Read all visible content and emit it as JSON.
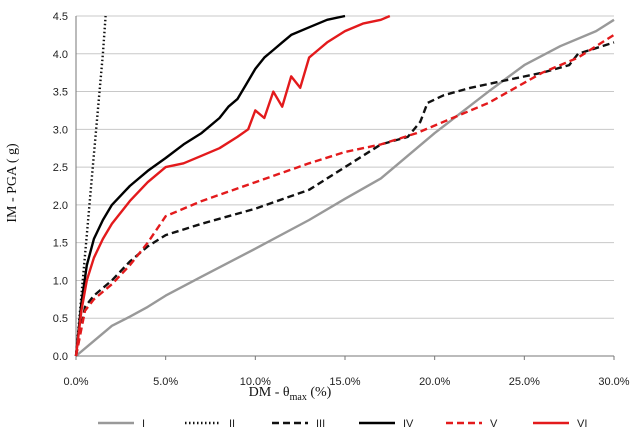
{
  "chart_data": {
    "type": "line",
    "xlabel": "DM - θmax (%)",
    "xlabel_main": "DM - θ",
    "xlabel_sub": "max",
    "xlabel_tail": " (%)",
    "ylabel": "IM - PGA ( g)",
    "xlim": [
      0,
      30
    ],
    "ylim": [
      0,
      4.5
    ],
    "x_ticks": [
      0,
      5,
      10,
      15,
      20,
      25,
      30
    ],
    "x_tick_labels": [
      "0.0%",
      "5.0%",
      "10.0%",
      "15.0%",
      "20.0%",
      "25.0%",
      "30.0%"
    ],
    "y_ticks": [
      0,
      0.5,
      1,
      1.5,
      2,
      2.5,
      3,
      3.5,
      4,
      4.5
    ],
    "y_tick_labels": [
      "0.0",
      "0.5",
      "1.0",
      "1.5",
      "2.0",
      "2.5",
      "3.0",
      "3.5",
      "4.0",
      "4.5"
    ],
    "grid": "horizontal",
    "legend_position": "bottom",
    "series": [
      {
        "name": "I",
        "color": "#999999",
        "style": "solid",
        "x": [
          0,
          1,
          2,
          3,
          4,
          5,
          7,
          10,
          13,
          15,
          17,
          20,
          23,
          25,
          27,
          29,
          30
        ],
        "y": [
          0,
          0.2,
          0.4,
          0.52,
          0.65,
          0.8,
          1.05,
          1.42,
          1.8,
          2.08,
          2.35,
          2.95,
          3.5,
          3.85,
          4.1,
          4.3,
          4.45
        ]
      },
      {
        "name": "II",
        "color": "#111111",
        "style": "dotted",
        "x": [
          0,
          0.3,
          0.6,
          0.9,
          1.2,
          1.5,
          1.65
        ],
        "y": [
          0,
          0.8,
          1.6,
          2.4,
          3.2,
          4.0,
          4.5
        ]
      },
      {
        "name": "III",
        "color": "#111111",
        "style": "dashed",
        "x": [
          0,
          0.5,
          1,
          2,
          3,
          4,
          5,
          7,
          10,
          13,
          15,
          17,
          18.5,
          19.2,
          19.6,
          20.5,
          22,
          24,
          26,
          27.5,
          28,
          30
        ],
        "y": [
          0,
          0.65,
          0.8,
          1.0,
          1.25,
          1.45,
          1.6,
          1.75,
          1.95,
          2.2,
          2.5,
          2.8,
          2.9,
          3.1,
          3.35,
          3.45,
          3.55,
          3.65,
          3.75,
          3.85,
          4.0,
          4.15
        ]
      },
      {
        "name": "IV",
        "color": "#000000",
        "style": "solid",
        "x": [
          0,
          0.3,
          0.6,
          1,
          1.5,
          2,
          3,
          4,
          5,
          6,
          7,
          8,
          8.5,
          9,
          9.5,
          10,
          10.5,
          11,
          11.5,
          12,
          13,
          14,
          15
        ],
        "y": [
          0,
          0.7,
          1.2,
          1.55,
          1.8,
          2.0,
          2.25,
          2.45,
          2.62,
          2.8,
          2.95,
          3.15,
          3.3,
          3.4,
          3.6,
          3.8,
          3.95,
          4.05,
          4.15,
          4.25,
          4.35,
          4.45,
          4.5
        ]
      },
      {
        "name": "V",
        "color": "#e31a1c",
        "style": "dashed",
        "x": [
          0,
          0.5,
          1,
          2,
          3,
          4,
          5,
          7,
          10,
          13,
          15,
          17,
          19,
          21,
          23,
          24.5,
          26,
          28,
          30
        ],
        "y": [
          0,
          0.6,
          0.75,
          0.95,
          1.2,
          1.5,
          1.85,
          2.05,
          2.3,
          2.55,
          2.7,
          2.8,
          2.95,
          3.15,
          3.35,
          3.55,
          3.75,
          3.95,
          4.25
        ]
      },
      {
        "name": "VI",
        "color": "#e31a1c",
        "style": "solid",
        "x": [
          0,
          0.3,
          0.6,
          1,
          1.5,
          2,
          3,
          4,
          5,
          6,
          7,
          8,
          9,
          9.6,
          10,
          10.5,
          11,
          11.5,
          12,
          12.5,
          13,
          13.5,
          14,
          15,
          16,
          17,
          17.5
        ],
        "y": [
          0,
          0.6,
          1.0,
          1.3,
          1.55,
          1.75,
          2.05,
          2.3,
          2.5,
          2.55,
          2.65,
          2.75,
          2.9,
          3.0,
          3.25,
          3.15,
          3.5,
          3.3,
          3.7,
          3.55,
          3.95,
          4.05,
          4.15,
          4.3,
          4.4,
          4.45,
          4.5
        ]
      }
    ]
  }
}
